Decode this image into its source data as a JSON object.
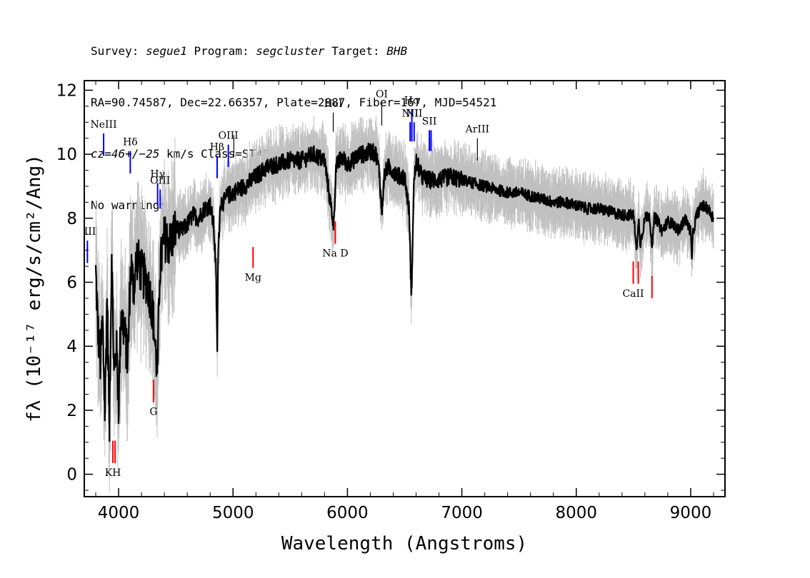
{
  "header": {
    "survey_label": "Survey:",
    "survey": "segue1",
    "program_label": "Program:",
    "program": "segcluster",
    "target_label": "Target:",
    "target": "BHB",
    "line2": "RA=90.74587, Dec=22.66357, Plate=2887, Fiber=167, MJD=54521",
    "cz": "cz=46+/−25",
    "line3_rest": " km/s Class=STAR CV",
    "line4": "No warnings."
  },
  "colors": {
    "flux": "#000000",
    "error": "#c0c0c0",
    "emission": "#0000ff",
    "absorption": "#ff0000",
    "other": "#000000"
  },
  "chart_data": {
    "type": "line",
    "xlabel": "Wavelength (Angstroms)",
    "ylabel": "fλ (10⁻¹⁷ erg/s/cm²/Ang)",
    "xlim": [
      3700,
      9300
    ],
    "ylim": [
      -0.7,
      12.3
    ],
    "xticks": [
      4000,
      5000,
      6000,
      7000,
      8000,
      9000
    ],
    "yticks": [
      0,
      2,
      4,
      6,
      8,
      10,
      12
    ],
    "grid": false,
    "series": [
      {
        "role": "flux",
        "x": [
          3800,
          3820,
          3840,
          3860,
          3880,
          3900,
          3920,
          3940,
          3960,
          3980,
          4000,
          4020,
          4050,
          4080,
          4100,
          4110,
          4130,
          4160,
          4200,
          4250,
          4280,
          4300,
          4320,
          4340,
          4360,
          4400,
          4450,
          4500,
          4550,
          4600,
          4650,
          4700,
          4750,
          4800,
          4830,
          4850,
          4862,
          4870,
          4890,
          4920,
          4950,
          5000,
          5100,
          5200,
          5300,
          5400,
          5500,
          5600,
          5700,
          5800,
          5850,
          5880,
          5900,
          5950,
          6000,
          6050,
          6100,
          6150,
          6200,
          6250,
          6280,
          6300,
          6320,
          6350,
          6400,
          6450,
          6500,
          6540,
          6555,
          6563,
          6570,
          6580,
          6600,
          6650,
          6700,
          6800,
          6900,
          7000,
          7100,
          7200,
          7300,
          7400,
          7500,
          7600,
          7700,
          7800,
          7900,
          8000,
          8100,
          8200,
          8300,
          8400,
          8500,
          8530,
          8545,
          8560,
          8600,
          8640,
          8665,
          8680,
          8700,
          8750,
          8800,
          8850,
          8900,
          8950,
          9000,
          9010,
          9020,
          9050,
          9100,
          9150,
          9200
        ],
        "y": [
          6.3,
          4.5,
          3.5,
          4.8,
          2.0,
          5.5,
          1.5,
          7.0,
          3.0,
          4.0,
          2.2,
          5.0,
          4.5,
          3.5,
          6.0,
          6.5,
          5.8,
          6.8,
          6.3,
          6.0,
          5.5,
          5.0,
          4.0,
          3.2,
          6.4,
          7.4,
          7.2,
          7.7,
          7.6,
          7.8,
          8.1,
          8.0,
          8.3,
          8.4,
          7.8,
          6.5,
          3.8,
          6.9,
          8.5,
          8.5,
          8.7,
          8.8,
          9.0,
          9.3,
          9.6,
          9.7,
          9.8,
          9.8,
          10.0,
          9.8,
          8.5,
          7.8,
          9.6,
          9.9,
          9.7,
          9.8,
          10.0,
          10.0,
          10.1,
          10.0,
          9.4,
          8.1,
          9.3,
          9.6,
          9.5,
          9.3,
          9.3,
          8.2,
          6.0,
          5.6,
          7.5,
          9.0,
          9.8,
          9.3,
          9.2,
          9.2,
          9.3,
          9.2,
          9.1,
          9.0,
          8.9,
          8.8,
          8.8,
          8.7,
          8.6,
          8.5,
          8.5,
          8.4,
          8.3,
          8.3,
          8.2,
          8.1,
          8.1,
          7.0,
          8.0,
          7.2,
          8.0,
          8.1,
          7.0,
          8.0,
          8.0,
          7.6,
          7.9,
          7.8,
          7.6,
          8.0,
          7.6,
          6.7,
          7.5,
          8.1,
          8.4,
          8.3,
          8.0
        ],
        "y_err_spread": 0.75
      }
    ],
    "line_labels": [
      {
        "text": "NeIII",
        "x": 3869,
        "y_top": 10.65,
        "y_bot": 9.95,
        "kind": "emission"
      },
      {
        "text": "Hδ",
        "x": 4102,
        "y_top": 10.1,
        "y_bot": 9.4,
        "kind": "emission"
      },
      {
        "text": "Hγ",
        "x": 4341,
        "y_top": 9.1,
        "y_bot": 8.4,
        "kind": "emission"
      },
      {
        "text": "OIII",
        "x": 4363,
        "y_top": 8.9,
        "y_bot": 8.3,
        "kind": "emission"
      },
      {
        "text": "Hβ",
        "x": 4861,
        "y_top": 9.95,
        "y_bot": 9.25,
        "kind": "emission"
      },
      {
        "text": "OIII",
        "x": 4959,
        "y_top": 10.3,
        "y_bot": 9.6,
        "kind": "emission"
      },
      {
        "text": "",
        "x": 5007,
        "y_top": 10.6,
        "y_bot": 9.9,
        "kind": "other"
      },
      {
        "text": "HeI",
        "x": 5876,
        "y_top": 11.3,
        "y_bot": 10.7,
        "kind": "other"
      },
      {
        "text": "OI",
        "x": 6300,
        "y_top": 11.6,
        "y_bot": 10.9,
        "kind": "other"
      },
      {
        "text": "NII",
        "x": 6548,
        "y_top": 11.0,
        "y_bot": 10.4,
        "kind": "emission"
      },
      {
        "text": "Hα",
        "x": 6563,
        "y_top": 11.4,
        "y_bot": 10.4,
        "kind": "emission"
      },
      {
        "text": "NII",
        "x": 6583,
        "y_top": 11.0,
        "y_bot": 10.4,
        "kind": "emission"
      },
      {
        "text": "SII",
        "x": 6716,
        "y_top": 10.75,
        "y_bot": 10.1,
        "kind": "emission"
      },
      {
        "text": "",
        "x": 6731,
        "y_top": 10.75,
        "y_bot": 10.1,
        "kind": "emission"
      },
      {
        "text": "ArIII",
        "x": 7136,
        "y_top": 10.5,
        "y_bot": 9.8,
        "kind": "other"
      },
      {
        "text": "III",
        "x": 3727,
        "y_top": 7.3,
        "y_bot": 6.6,
        "kind": "emission"
      },
      {
        "text": "KH",
        "x": 3950,
        "y_top": 1.05,
        "y_bot": 0.35,
        "kind": "absorption"
      },
      {
        "text": "",
        "x": 3969,
        "y_top": 1.05,
        "y_bot": 0.35,
        "kind": "absorption"
      },
      {
        "text": "G",
        "x": 4305,
        "y_top": 2.95,
        "y_bot": 2.25,
        "kind": "absorption"
      },
      {
        "text": "Mg",
        "x": 5175,
        "y_top": 7.1,
        "y_bot": 6.45,
        "kind": "absorption"
      },
      {
        "text": "Na D",
        "x": 5894,
        "y_top": 7.9,
        "y_bot": 7.2,
        "kind": "absorption"
      },
      {
        "text": "CaII",
        "x": 8498,
        "y_top": 6.65,
        "y_bot": 5.95,
        "kind": "absorption"
      },
      {
        "text": "",
        "x": 8542,
        "y_top": 6.65,
        "y_bot": 5.95,
        "kind": "absorption"
      },
      {
        "text": "",
        "x": 8662,
        "y_top": 6.2,
        "y_bot": 5.5,
        "kind": "absorption"
      }
    ]
  }
}
